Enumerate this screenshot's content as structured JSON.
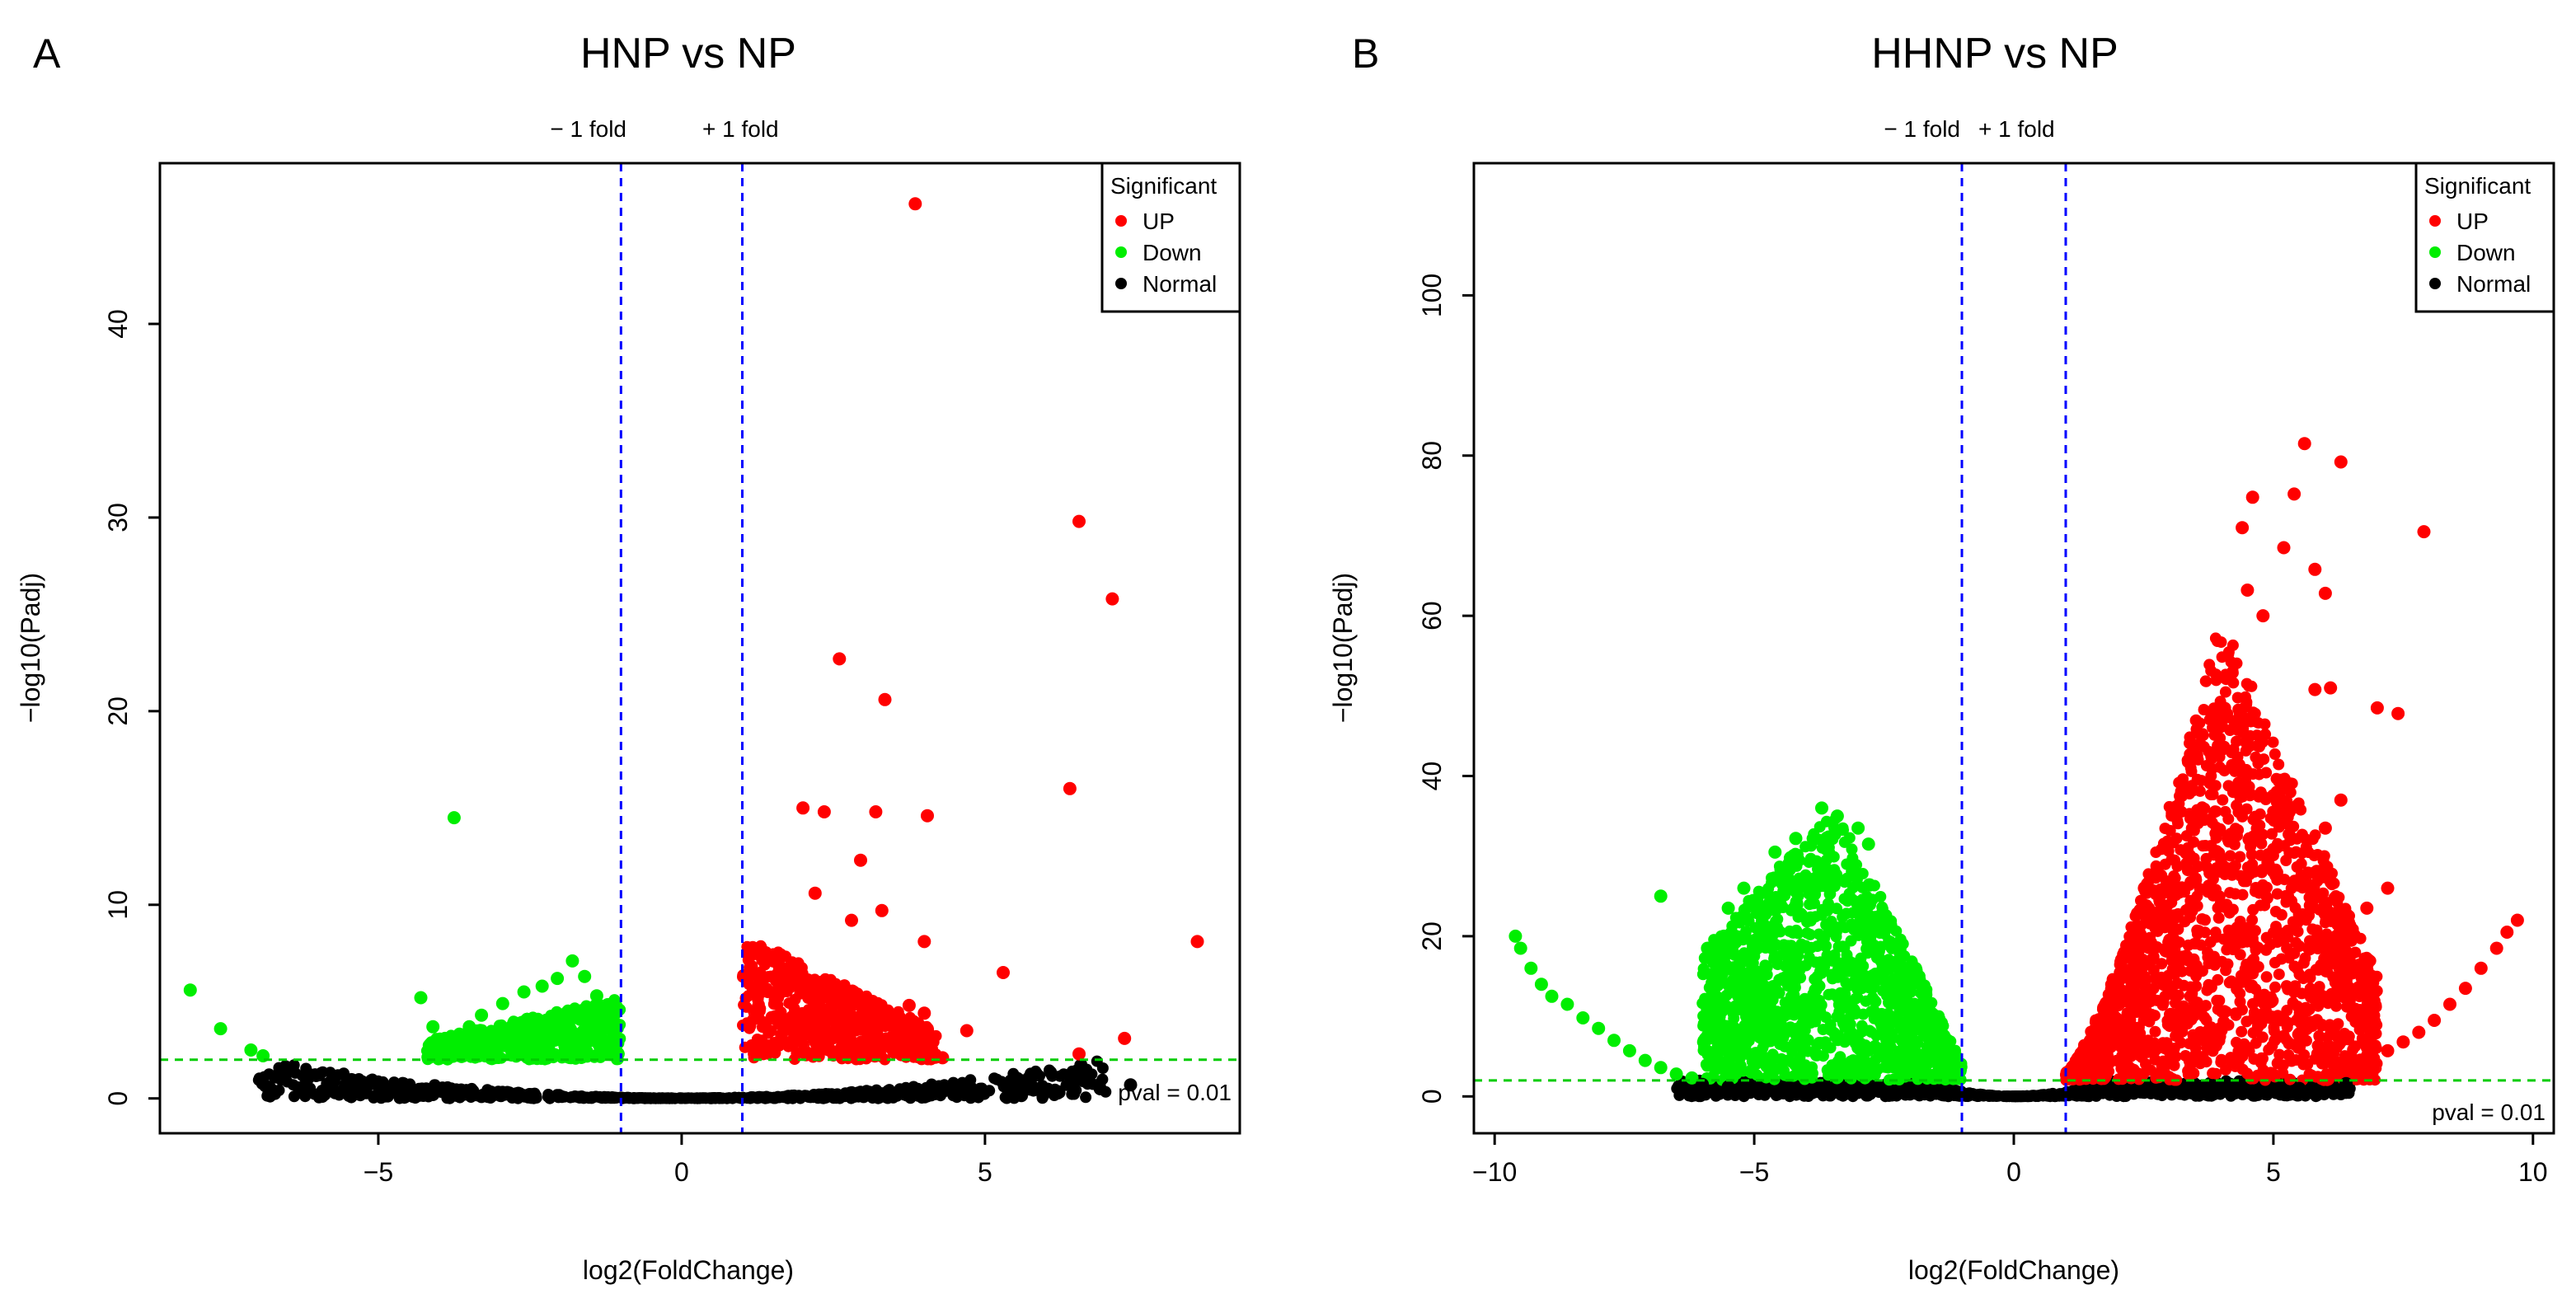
{
  "colors": {
    "up": "#ff0000",
    "down": "#00ee00",
    "normal": "#000000",
    "vline": "#0000ff",
    "hline": "#00cc00"
  },
  "chart_data": [
    {
      "type": "scatter",
      "panel_label": "A",
      "title": "HNP vs NP",
      "xlabel": "log2(FoldChange)",
      "ylabel": "−log10(Padj)",
      "xlim": [
        -8.6,
        9.2
      ],
      "ylim": [
        -1.8,
        48.3
      ],
      "x_ticks": [
        -5,
        0,
        5
      ],
      "x_tick_labels": [
        "−5",
        "0",
        "5"
      ],
      "y_ticks": [
        0,
        10,
        20,
        30,
        40
      ],
      "y_tick_labels": [
        "0",
        "10",
        "20",
        "30",
        "40"
      ],
      "grid": false,
      "legend_placement": "top-right",
      "legend": {
        "title": "Significant",
        "entries": [
          "UP",
          "Down",
          "Normal"
        ]
      },
      "fold_lines": {
        "labels": [
          "− 1 fold",
          "+ 1 fold"
        ],
        "x": [
          -1,
          1
        ]
      },
      "threshold": {
        "label": "pval = 0.01",
        "y": 2
      },
      "clouds": [
        {
          "series": "Down",
          "x_min": -4.2,
          "x_max": -1.0,
          "y_top_outer": 3.0,
          "y_top_inner": 5.2,
          "density": 0.6
        },
        {
          "series": "UP",
          "x_min": 1.0,
          "x_max": 4.2,
          "y_top_inner": 8.5,
          "y_top_outer": 3.5,
          "density": 0.6
        }
      ],
      "normal_band": {
        "x_min": -7.0,
        "x_max": 7.0,
        "y_max": 2,
        "k": 0.042
      },
      "series": [
        {
          "name": "UP",
          "points": [
            [
              3.85,
              46.2
            ],
            [
              6.55,
              29.8
            ],
            [
              7.1,
              25.8
            ],
            [
              2.6,
              22.7
            ],
            [
              3.35,
              20.6
            ],
            [
              6.4,
              16.0
            ],
            [
              2.0,
              15.0
            ],
            [
              2.35,
              14.8
            ],
            [
              3.2,
              14.8
            ],
            [
              4.05,
              14.6
            ],
            [
              2.95,
              12.3
            ],
            [
              2.2,
              10.6
            ],
            [
              3.3,
              9.7
            ],
            [
              2.8,
              9.2
            ],
            [
              8.5,
              8.1
            ],
            [
              4.0,
              8.1
            ],
            [
              5.3,
              6.5
            ],
            [
              3.75,
              4.8
            ],
            [
              4.0,
              4.4
            ],
            [
              4.7,
              3.5
            ],
            [
              7.3,
              3.1
            ],
            [
              6.55,
              2.3
            ],
            [
              4.3,
              2.1
            ],
            [
              1.3,
              7.8
            ],
            [
              1.6,
              6.9
            ],
            [
              1.9,
              6.5
            ],
            [
              2.1,
              5.8
            ],
            [
              2.4,
              5.6
            ],
            [
              1.2,
              4.5
            ],
            [
              2.7,
              4.9
            ],
            [
              3.0,
              3.8
            ],
            [
              3.1,
              3.3
            ],
            [
              3.6,
              2.7
            ]
          ]
        },
        {
          "name": "Down",
          "points": [
            [
              -3.75,
              14.5
            ],
            [
              -8.1,
              5.6
            ],
            [
              -7.6,
              3.6
            ],
            [
              -7.1,
              2.5
            ],
            [
              -6.9,
              2.2
            ],
            [
              -4.3,
              5.2
            ],
            [
              -4.1,
              3.7
            ],
            [
              -3.9,
              3.1
            ],
            [
              -4.0,
              2.3
            ],
            [
              -3.5,
              3.7
            ],
            [
              -3.3,
              4.3
            ],
            [
              -2.95,
              4.9
            ],
            [
              -2.6,
              5.5
            ],
            [
              -2.3,
              5.8
            ],
            [
              -2.05,
              6.2
            ],
            [
              -1.8,
              7.1
            ],
            [
              -1.6,
              6.3
            ],
            [
              -1.4,
              5.3
            ],
            [
              -1.2,
              4.6
            ]
          ]
        },
        {
          "name": "Normal",
          "points": [
            [
              -5.8,
              0.4
            ],
            [
              -5.2,
              0.3
            ],
            [
              -4.1,
              0.2
            ],
            [
              -3.3,
              0.1
            ],
            [
              -2.6,
              0.15
            ],
            [
              3.0,
              0.1
            ],
            [
              4.1,
              0.2
            ],
            [
              5.6,
              0.15
            ],
            [
              6.2,
              0.35
            ],
            [
              6.9,
              0.5
            ],
            [
              7.4,
              0.7
            ],
            [
              -6.2,
              0.7
            ],
            [
              -6.6,
              1.0
            ],
            [
              4.8,
              0.3
            ]
          ]
        }
      ]
    },
    {
      "type": "scatter",
      "panel_label": "B",
      "title": "HHNP vs NP",
      "xlabel": "log2(FoldChange)",
      "ylabel": "−log10(Padj)",
      "xlim": [
        -10.4,
        10.4
      ],
      "ylim": [
        -4.6,
        116.5
      ],
      "x_ticks": [
        -10,
        -5,
        0,
        5,
        10
      ],
      "x_tick_labels": [
        "−10",
        "−5",
        "0",
        "5",
        "10"
      ],
      "y_ticks": [
        0,
        20,
        40,
        60,
        80,
        100
      ],
      "y_tick_labels": [
        "0",
        "20",
        "40",
        "60",
        "80",
        "100"
      ],
      "grid": false,
      "legend_placement": "top-right",
      "legend": {
        "title": "Significant",
        "entries": [
          "UP",
          "Down",
          "Normal"
        ]
      },
      "fold_lines": {
        "labels": [
          "− 1 fold",
          "+ 1 fold"
        ],
        "x": [
          -1,
          1
        ]
      },
      "threshold": {
        "label": "pval = 0.01",
        "y": 2
      },
      "clouds": [
        {
          "series": "Down",
          "x_min": -6.0,
          "x_max": -1.0,
          "y_top_outer": 18,
          "y_top_peak": 36,
          "x_peak": -3.5,
          "density": 1.5
        },
        {
          "series": "UP",
          "x_min": 1.0,
          "x_max": 7.0,
          "y_top_peak": 60,
          "x_peak": 4.0,
          "y_top_outer": 15,
          "density": 2.0
        }
      ],
      "normal_band": {
        "x_min": -6.5,
        "x_max": 6.5,
        "y_max": 2,
        "k": 0.6
      },
      "series": [
        {
          "name": "UP",
          "points": [
            [
              5.6,
              81.5
            ],
            [
              6.3,
              79.2
            ],
            [
              5.4,
              75.2
            ],
            [
              4.6,
              74.8
            ],
            [
              7.9,
              70.5
            ],
            [
              4.4,
              71.0
            ],
            [
              5.2,
              68.5
            ],
            [
              5.8,
              65.8
            ],
            [
              6.0,
              62.8
            ],
            [
              7.0,
              48.5
            ],
            [
              7.4,
              47.8
            ],
            [
              5.8,
              50.8
            ],
            [
              6.1,
              51.0
            ],
            [
              6.3,
              37.0
            ],
            [
              6.0,
              33.5
            ],
            [
              7.2,
              26.0
            ],
            [
              6.8,
              23.5
            ],
            [
              4.8,
              60.0
            ],
            [
              4.5,
              63.2
            ],
            [
              9.7,
              22.0
            ],
            [
              9.5,
              20.5
            ],
            [
              9.3,
              18.5
            ],
            [
              9.0,
              16.0
            ],
            [
              8.7,
              13.5
            ],
            [
              8.4,
              11.5
            ],
            [
              8.1,
              9.5
            ],
            [
              7.8,
              8.0
            ],
            [
              7.5,
              6.8
            ],
            [
              7.2,
              5.7
            ],
            [
              6.9,
              4.8
            ],
            [
              6.6,
              3.8
            ],
            [
              6.3,
              3.0
            ],
            [
              6.0,
              2.4
            ]
          ]
        },
        {
          "name": "Down",
          "points": [
            [
              -9.6,
              20.0
            ],
            [
              -9.5,
              18.5
            ],
            [
              -9.3,
              16.0
            ],
            [
              -9.1,
              14.0
            ],
            [
              -8.9,
              12.5
            ],
            [
              -8.6,
              11.5
            ],
            [
              -8.3,
              9.8
            ],
            [
              -8.0,
              8.5
            ],
            [
              -7.7,
              7.0
            ],
            [
              -7.4,
              5.7
            ],
            [
              -7.1,
              4.5
            ],
            [
              -6.8,
              3.6
            ],
            [
              -6.5,
              2.8
            ],
            [
              -6.2,
              2.3
            ],
            [
              -6.8,
              25.0
            ],
            [
              -5.9,
              18.5
            ],
            [
              -5.7,
              16.5
            ],
            [
              -5.5,
              14.0
            ],
            [
              -5.3,
              12.5
            ],
            [
              -5.0,
              11.0
            ],
            [
              -4.7,
              9.5
            ],
            [
              -4.4,
              8.0
            ],
            [
              -4.1,
              6.5
            ],
            [
              -3.8,
              5.2
            ],
            [
              -5.5,
              23.5
            ],
            [
              -5.2,
              26.0
            ],
            [
              -4.6,
              30.5
            ],
            [
              -4.2,
              32.2
            ],
            [
              -3.7,
              36.0
            ],
            [
              -3.4,
              35.0
            ],
            [
              -3.0,
              33.5
            ],
            [
              -2.8,
              31.5
            ]
          ]
        },
        {
          "name": "Normal",
          "points": [
            [
              -6.0,
              1.5
            ],
            [
              -5.5,
              1.2
            ],
            [
              -5.0,
              0.8
            ],
            [
              -4.0,
              0.6
            ],
            [
              -3.0,
              0.5
            ],
            [
              -2.0,
              0.3
            ],
            [
              3.5,
              0.5
            ],
            [
              4.5,
              0.7
            ],
            [
              5.5,
              1.0
            ],
            [
              6.4,
              1.6
            ],
            [
              -3.6,
              0.3
            ],
            [
              2.8,
              0.4
            ]
          ]
        }
      ]
    }
  ]
}
